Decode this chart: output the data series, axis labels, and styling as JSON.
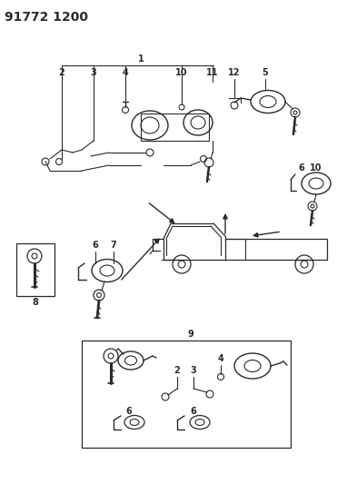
{
  "title": "91772 1200",
  "bg_color": "#ffffff",
  "line_color": "#2a2a2a",
  "title_fontsize": 10,
  "label_fontsize": 7,
  "figsize": [
    3.93,
    5.33
  ],
  "dpi": 100
}
